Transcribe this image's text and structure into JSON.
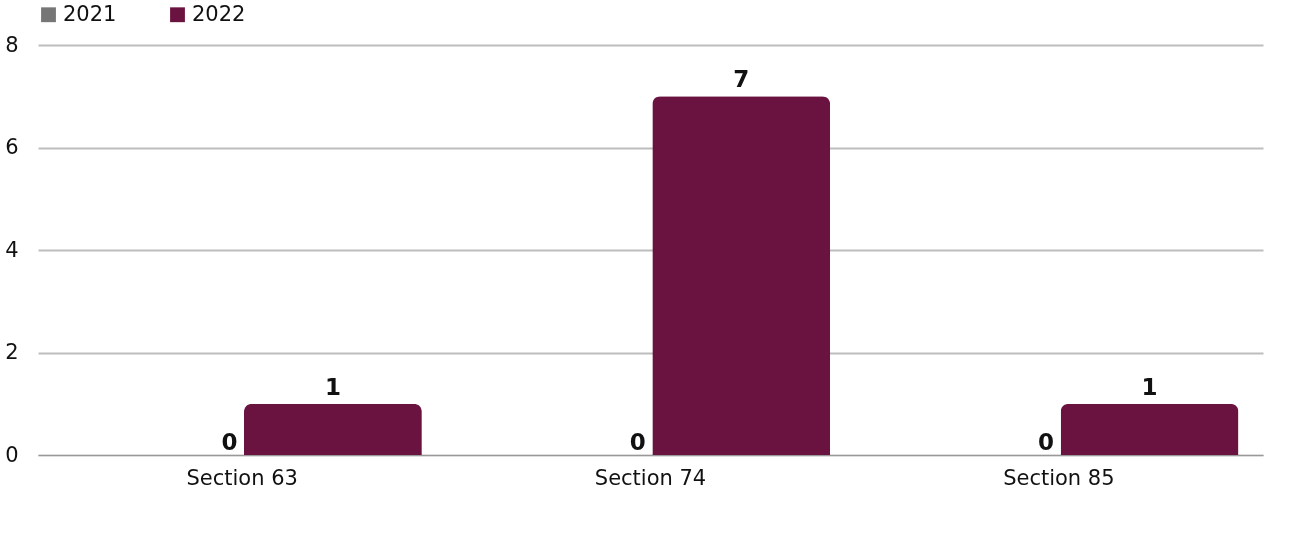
{
  "chart_data": {
    "type": "bar",
    "categories": [
      "Section 63",
      "Section 74",
      "Section 85"
    ],
    "series": [
      {
        "name": "2021",
        "color": "#767676",
        "values": [
          0,
          0,
          0
        ]
      },
      {
        "name": "2022",
        "color": "#6b1340",
        "values": [
          1,
          7,
          1
        ]
      }
    ],
    "ylim": [
      0,
      8
    ],
    "yticks": [
      0,
      2,
      4,
      6,
      8
    ],
    "grid": "y",
    "legend": "top",
    "data_labels": true
  }
}
